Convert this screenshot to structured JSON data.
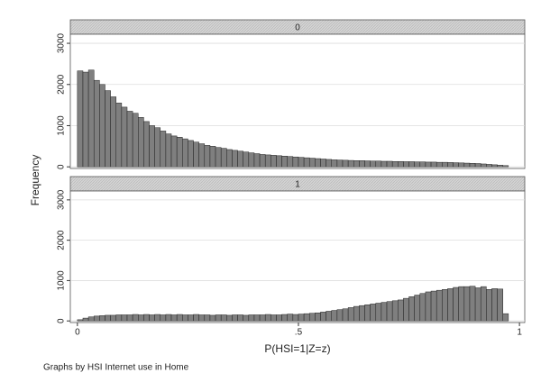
{
  "chart_data": {
    "type": "histogram",
    "x_label": "P(HSI=1|Z=z)",
    "y_label": "Frequency",
    "note": "Graphs by HSI Internet use in Home",
    "color": "#7f7f7f",
    "grid": true,
    "xlim": [
      -0.016,
      1.012
    ],
    "xticks": [
      0,
      {
        "value": 0.5,
        "label": ".5"
      },
      1
    ],
    "ylim": [
      -40,
      3220
    ],
    "yticks": [
      0,
      1000,
      2000,
      3000
    ],
    "bins": [
      0,
      0.0125,
      0.025,
      0.0375,
      0.05,
      0.0625,
      0.075,
      0.0875,
      0.1,
      0.1125,
      0.125,
      0.1375,
      0.15,
      0.1625,
      0.175,
      0.1875,
      0.2,
      0.2125,
      0.225,
      0.2375,
      0.25,
      0.2625,
      0.275,
      0.2875,
      0.3,
      0.3125,
      0.325,
      0.3375,
      0.35,
      0.3625,
      0.375,
      0.3875,
      0.4,
      0.4125,
      0.425,
      0.4375,
      0.45,
      0.4625,
      0.475,
      0.4875,
      0.5,
      0.5125,
      0.525,
      0.5375,
      0.55,
      0.5625,
      0.575,
      0.5875,
      0.6,
      0.6125,
      0.625,
      0.6375,
      0.65,
      0.6625,
      0.675,
      0.6875,
      0.7,
      0.7125,
      0.725,
      0.7375,
      0.75,
      0.7625,
      0.775,
      0.7875,
      0.8,
      0.8125,
      0.825,
      0.8375,
      0.85,
      0.8625,
      0.875,
      0.8875,
      0.9,
      0.9125,
      0.925,
      0.9375,
      0.95,
      0.9625,
      0.975
    ],
    "panels": [
      {
        "title": "0",
        "counts": [
          2330,
          2300,
          2350,
          2100,
          2000,
          1850,
          1700,
          1550,
          1450,
          1350,
          1300,
          1200,
          1100,
          1000,
          950,
          870,
          800,
          750,
          720,
          680,
          640,
          600,
          560,
          520,
          500,
          470,
          450,
          420,
          400,
          380,
          360,
          340,
          320,
          300,
          290,
          280,
          270,
          260,
          250,
          240,
          230,
          220,
          210,
          200,
          190,
          180,
          170,
          165,
          160,
          155,
          150,
          150,
          145,
          140,
          140,
          135,
          135,
          130,
          130,
          125,
          125,
          120,
          120,
          115,
          115,
          110,
          110,
          105,
          100,
          95,
          90,
          85,
          80,
          70,
          60,
          50,
          40,
          30
        ]
      },
      {
        "title": "1",
        "counts": [
          30,
          70,
          100,
          120,
          130,
          140,
          140,
          150,
          150,
          150,
          160,
          150,
          160,
          150,
          160,
          150,
          160,
          150,
          160,
          150,
          150,
          160,
          150,
          150,
          140,
          150,
          150,
          140,
          150,
          150,
          140,
          150,
          150,
          150,
          160,
          150,
          150,
          160,
          170,
          160,
          170,
          180,
          190,
          200,
          220,
          240,
          260,
          280,
          300,
          330,
          360,
          380,
          400,
          420,
          440,
          460,
          480,
          500,
          520,
          560,
          600,
          640,
          680,
          720,
          740,
          760,
          780,
          800,
          830,
          850,
          850,
          860,
          820,
          850,
          780,
          800,
          790,
          180
        ]
      }
    ]
  }
}
